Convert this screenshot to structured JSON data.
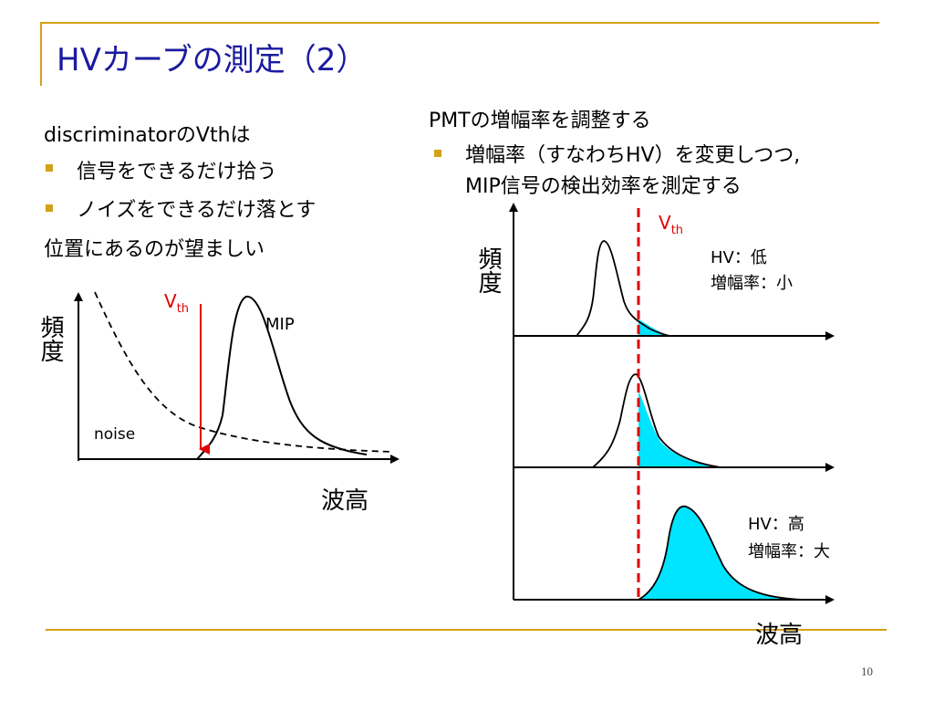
{
  "slide": {
    "title": "HVカーブの測定（2）",
    "page_number": "10"
  },
  "left": {
    "heading": "discriminatorのVthは",
    "bullets": [
      "信号をできるだけ拾う",
      "ノイズをできるだけ落とす"
    ],
    "conclusion": "位置にあるのが望ましい",
    "chart": {
      "ylabel": "頻度",
      "xlabel": "波高",
      "vth_main": "V",
      "vth_sub": "th",
      "signal_label": "MIP",
      "noise_label": "noise"
    }
  },
  "right": {
    "heading": "PMTの増幅率を調整する",
    "bullet_line1": "増幅率（すなわちHV）を変更しつつ,",
    "bullet_line2": "MIP信号の検出効率を測定する",
    "chart": {
      "ylabel": "頻度",
      "xlabel": "波高",
      "vth_main": "V",
      "vth_sub": "th",
      "low_hv": "HV：低",
      "low_gain": "増幅率：小",
      "high_hv": "HV：高",
      "high_gain": "増幅率：大"
    }
  },
  "colors": {
    "title": "#1a1aa0",
    "accent_rule": "#d4a017",
    "threshold": "#e00000",
    "fill": "#00e5ff"
  }
}
